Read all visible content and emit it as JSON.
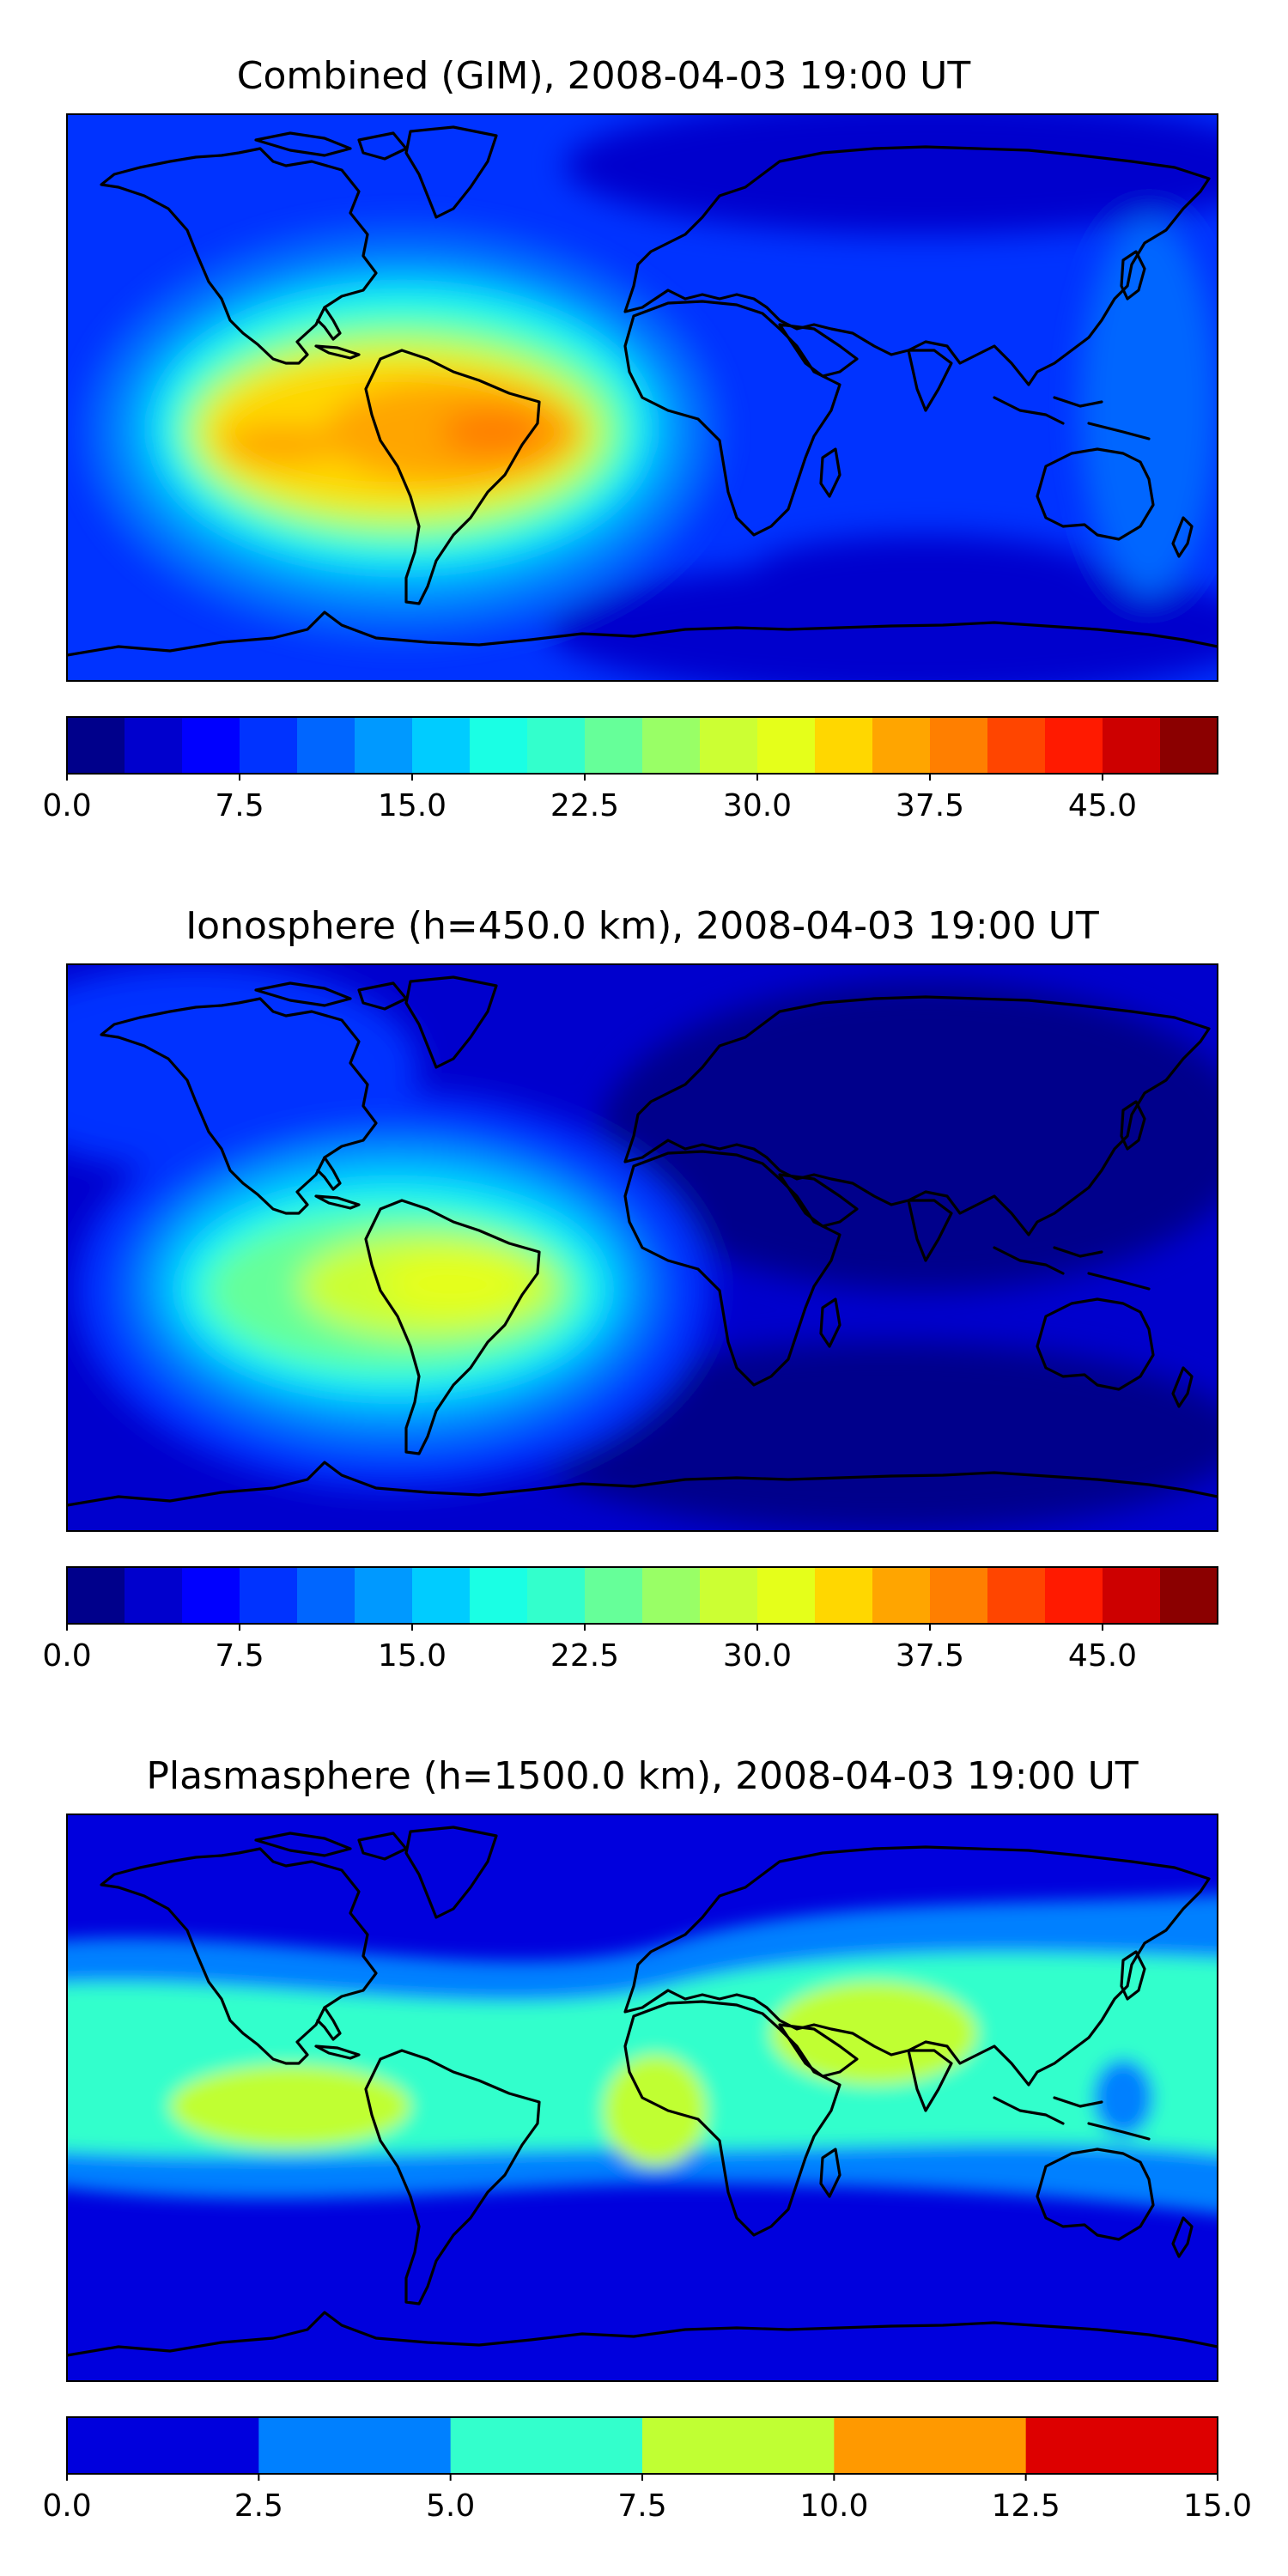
{
  "panels": [
    {
      "id": "combined",
      "title": "Combined (GIM), 2008-04-03 19:00 UT",
      "colorbar": {
        "range": [
          0,
          50
        ],
        "bin_width": 2.5,
        "ticks": [
          "0.0",
          "7.5",
          "15.0",
          "22.5",
          "30.0",
          "37.5",
          "45.0"
        ],
        "colors": [
          "#00008b",
          "#0000cd",
          "#0000ff",
          "#0033ff",
          "#0066ff",
          "#0099ff",
          "#00ccff",
          "#1affe4",
          "#33ffcc",
          "#66ff99",
          "#99ff66",
          "#ccff33",
          "#e5ff1a",
          "#ffd700",
          "#ffa500",
          "#ff7f00",
          "#ff4500",
          "#ff1a00",
          "#cd0000",
          "#8b0000"
        ]
      }
    },
    {
      "id": "ionosphere",
      "title": "Ionosphere  (h=450.0 km), 2008-04-03 19:00 UT",
      "colorbar": {
        "range": [
          0,
          50
        ],
        "bin_width": 2.5,
        "ticks": [
          "0.0",
          "7.5",
          "15.0",
          "22.5",
          "30.0",
          "37.5",
          "45.0"
        ],
        "colors": [
          "#00008b",
          "#0000cd",
          "#0000ff",
          "#0033ff",
          "#0066ff",
          "#0099ff",
          "#00ccff",
          "#1affe4",
          "#33ffcc",
          "#66ff99",
          "#99ff66",
          "#ccff33",
          "#e5ff1a",
          "#ffd700",
          "#ffa500",
          "#ff7f00",
          "#ff4500",
          "#ff1a00",
          "#cd0000",
          "#8b0000"
        ]
      }
    },
    {
      "id": "plasmasphere",
      "title": "Plasmasphere (h=1500.0 km), 2008-04-03 19:00 UT",
      "colorbar": {
        "range": [
          0,
          15
        ],
        "bin_width": 2.5,
        "ticks": [
          "0.0",
          "2.5",
          "5.0",
          "7.5",
          "10.0",
          "12.5",
          "15.0"
        ],
        "colors": [
          "#0000dd",
          "#0080ff",
          "#33ffcc",
          "#c0ff33",
          "#ff9900",
          "#dd0000"
        ]
      }
    }
  ],
  "chart_data": [
    {
      "type": "heatmap",
      "title": "Combined (GIM), 2008-04-03 19:00 UT",
      "scale_range": [
        0,
        50
      ],
      "overall_level": "low (about 5-12) over most of the globe; enhancement over the Americas and tropical Atlantic",
      "features": [
        {
          "region": "South America / tropical Atlantic",
          "value_approx": 40,
          "note": "peak near eastern Brazil"
        },
        {
          "region": "Eastern Pacific west of South America",
          "value_approx": 37
        },
        {
          "region": "Southern Indian Ocean / south of Australia",
          "value_approx": 5,
          "note": "minimum"
        },
        {
          "region": "Asia and polar regions",
          "value_approx": 7
        }
      ]
    },
    {
      "type": "heatmap",
      "title": "Ionosphere  (h=450.0 km), 2008-04-03 19:00 UT",
      "scale_range": [
        0,
        50
      ],
      "overall_level": "very low (about 2-7) over Eurasia and Pacific night side",
      "features": [
        {
          "region": "South America",
          "value_approx": 31,
          "note": "peak over Brazil"
        },
        {
          "region": "Eastern tropical Pacific",
          "value_approx": 27
        },
        {
          "region": "Asia / Indian Ocean",
          "value_approx": 3,
          "note": "minimum"
        }
      ]
    },
    {
      "type": "heatmap",
      "title": "Plasmasphere (h=1500.0 km), 2008-04-03 19:00 UT",
      "scale_range": [
        0,
        15
      ],
      "overall_level": "equatorial band of about 5-10, higher latitudes below 2.5",
      "features": [
        {
          "region": "Equatorial band (all longitudes)",
          "value_approx": 6
        },
        {
          "region": "Eastern Pacific",
          "value_approx": 8.5
        },
        {
          "region": "Central Africa",
          "value_approx": 8.5
        },
        {
          "region": "Arabian Sea / India",
          "value_approx": 8.5
        },
        {
          "region": "High latitudes (north and south)",
          "value_approx": 1.5
        }
      ]
    }
  ]
}
